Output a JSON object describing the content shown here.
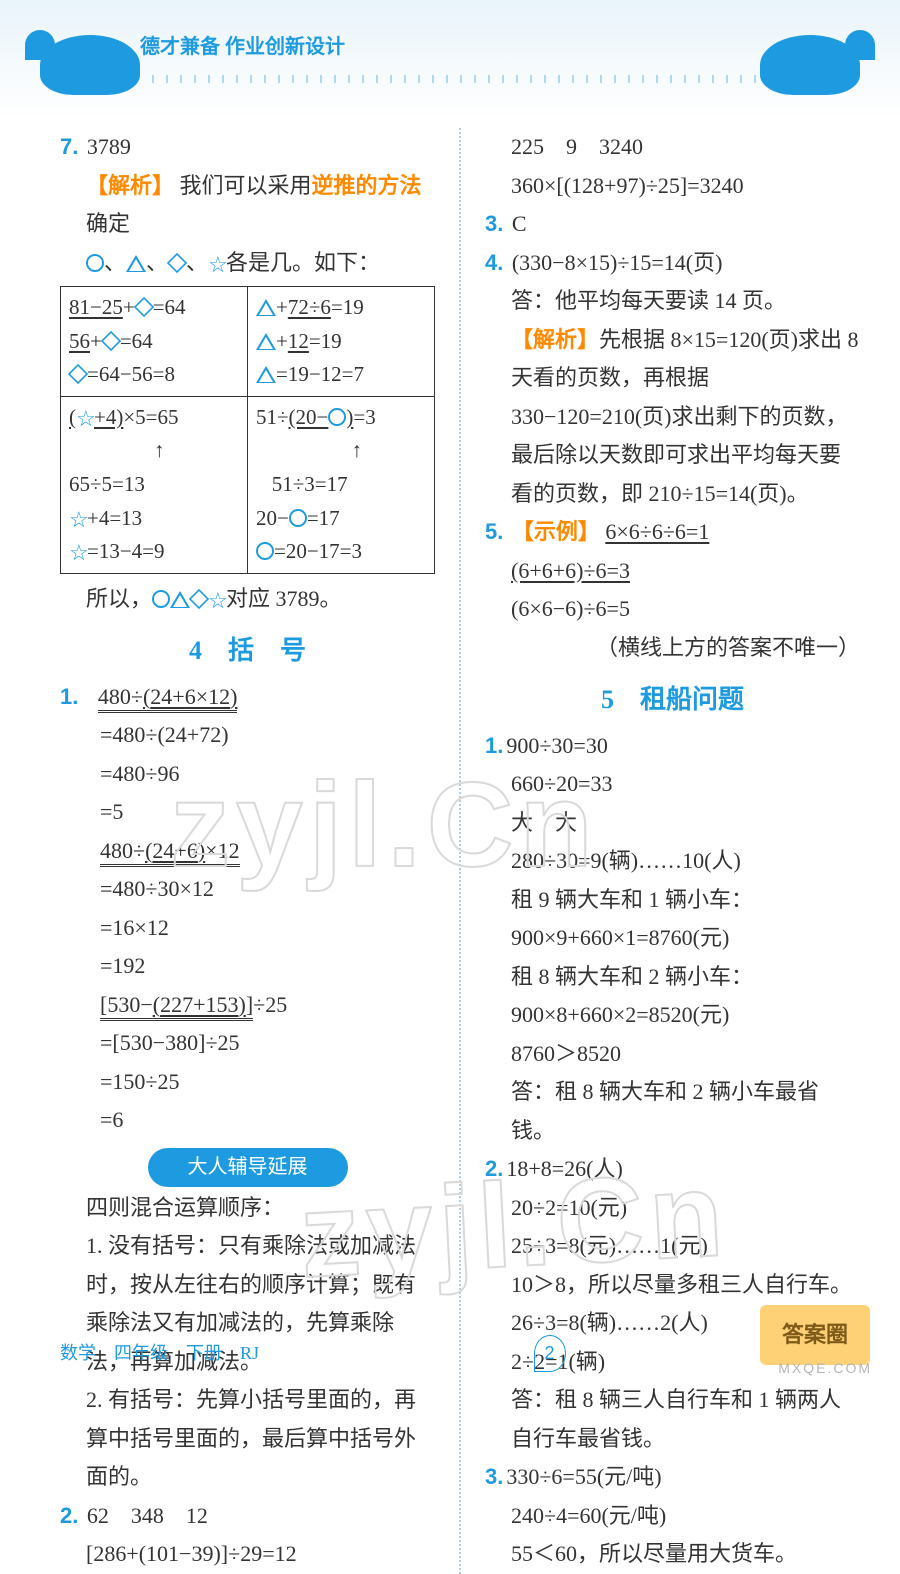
{
  "header": {
    "brand": "德才兼备",
    "title": "作业创新设计"
  },
  "left": {
    "q7": {
      "num": "7.",
      "answer": "3789",
      "analysis_label": "【解析】",
      "analysis_text_1": "我们可以采用",
      "analysis_text_hl": "逆推的方法",
      "analysis_text_2": "确定",
      "analysis_text_3": "各是几。如下：",
      "table": {
        "r1c1_a": "81−25",
        "r1c1_b": "+",
        "r1c1_c": "=64",
        "r1c1_d": "56",
        "r1c1_e": "+",
        "r1c1_f": "=64",
        "r1c1_g": "=64−56=8",
        "r1c2_a": "+",
        "r1c2_b": "72÷6",
        "r1c2_c": "=19",
        "r1c2_d": "+",
        "r1c2_e": "12",
        "r1c2_f": "=19",
        "r1c2_g": "=19−12=7",
        "r2c1_a": "(",
        "r2c1_b": "+4)",
        "r2c1_c": "×5=65",
        "r2c1_d": "65÷5=13",
        "r2c1_e": "+4=13",
        "r2c1_f": "=13−4=9",
        "r2c2_a": "51÷",
        "r2c2_b": "(20−",
        "r2c2_c": ")",
        "r2c2_d": "=3",
        "r2c2_e": "51÷3=17",
        "r2c2_f": "20−",
        "r2c2_g": "=17",
        "r2c2_h": "=20−17=3"
      },
      "conclusion_1": "所以，",
      "conclusion_2": "对应 3789。"
    },
    "sec4_title": "4　括　号",
    "q1": {
      "num": "1.",
      "eq1": "480÷(24+6×12)",
      "eq1_inner": "6×12",
      "eq1_mid": "24+",
      "s1a": "=480÷(24+72)",
      "s1b": "=480÷96",
      "s1c": "=5",
      "eq2_outer": "480÷(24+6)×12",
      "eq2_inner": "24+6",
      "s2a": "=480÷30×12",
      "s2b": "=16×12",
      "s2c": "=192",
      "eq3_outer": "[530−(227+153)]÷25",
      "eq3_inner": "227+153",
      "s3a": "=[530−380]÷25",
      "s3b": "=150÷25",
      "s3c": "=6"
    },
    "pill": "大人辅导延展",
    "guide": {
      "title": "四则混合运算顺序：",
      "p1": "1. 没有括号：只有乘除法或加减法时，按从左往右的顺序计算；既有乘除法又有加减法的，先算乘除法，再算加减法。",
      "p2": "2. 有括号：先算小括号里面的，再算中括号里面的，最后算中括号外面的。"
    },
    "q2": {
      "num": "2.",
      "row": "62　348　12",
      "eq": "[286+(101−39)]÷29=12"
    }
  },
  "right": {
    "top": {
      "row": "225　9　3240",
      "eq": "360×[(128+97)÷25]=3240"
    },
    "q3": {
      "num": "3.",
      "ans": "C"
    },
    "q4": {
      "num": "4.",
      "eq": "(330−8×15)÷15=14(页)",
      "ans": "答：他平均每天要读 14 页。",
      "analysis_label": "【解析】",
      "analysis": "先根据 8×15=120(页)求出 8 天看的页数，再根据 330−120=210(页)求出剩下的页数，最后除以天数即可求出平均每天要看的页数，即 210÷15=14(页)。"
    },
    "q5": {
      "num": "5.",
      "example_label": "【示例】",
      "l1": "6×6÷6÷6=1",
      "l2": "(6+6+6)÷6=3",
      "l3": "(6×6−6)÷6=5",
      "note": "（横线上方的答案不唯一）"
    },
    "sec5_title": "5　租船问题",
    "b1": {
      "num": "1.",
      "a": "900÷30=30",
      "b": "660÷20=33",
      "c": "大　大",
      "d": "280÷30=9(辆)……10(人)",
      "e": "租 9 辆大车和 1 辆小车：",
      "f": "900×9+660×1=8760(元)",
      "g": "租 8 辆大车和 2 辆小车：",
      "h": "900×8+660×2=8520(元)",
      "i": "8760＞8520",
      "j": "答：租 8 辆大车和 2 辆小车最省钱。"
    },
    "b2": {
      "num": "2.",
      "a": "18+8=26(人)",
      "b": "20÷2=10(元)",
      "c": "25÷3=8(元)……1(元)",
      "d": "10＞8，所以尽量多租三人自行车。",
      "e": "26÷3=8(辆)……2(人)",
      "f": "2÷2=1(辆)",
      "g": "答：租 8 辆三人自行车和 1 辆两人自行车最省钱。"
    },
    "b3": {
      "num": "3.",
      "a": "330÷6=55(元/吨)",
      "b": "240÷4=60(元/吨)",
      "c": "55＜60，所以尽量用大货车。"
    }
  },
  "footer": {
    "text": "数学　四年级　下册　RJ",
    "page": "2"
  },
  "watermark1": "zyjl.Cn",
  "watermark2": "zyjl.Cn",
  "corner": "答案圈",
  "corner_sub": "MXQE.COM"
}
